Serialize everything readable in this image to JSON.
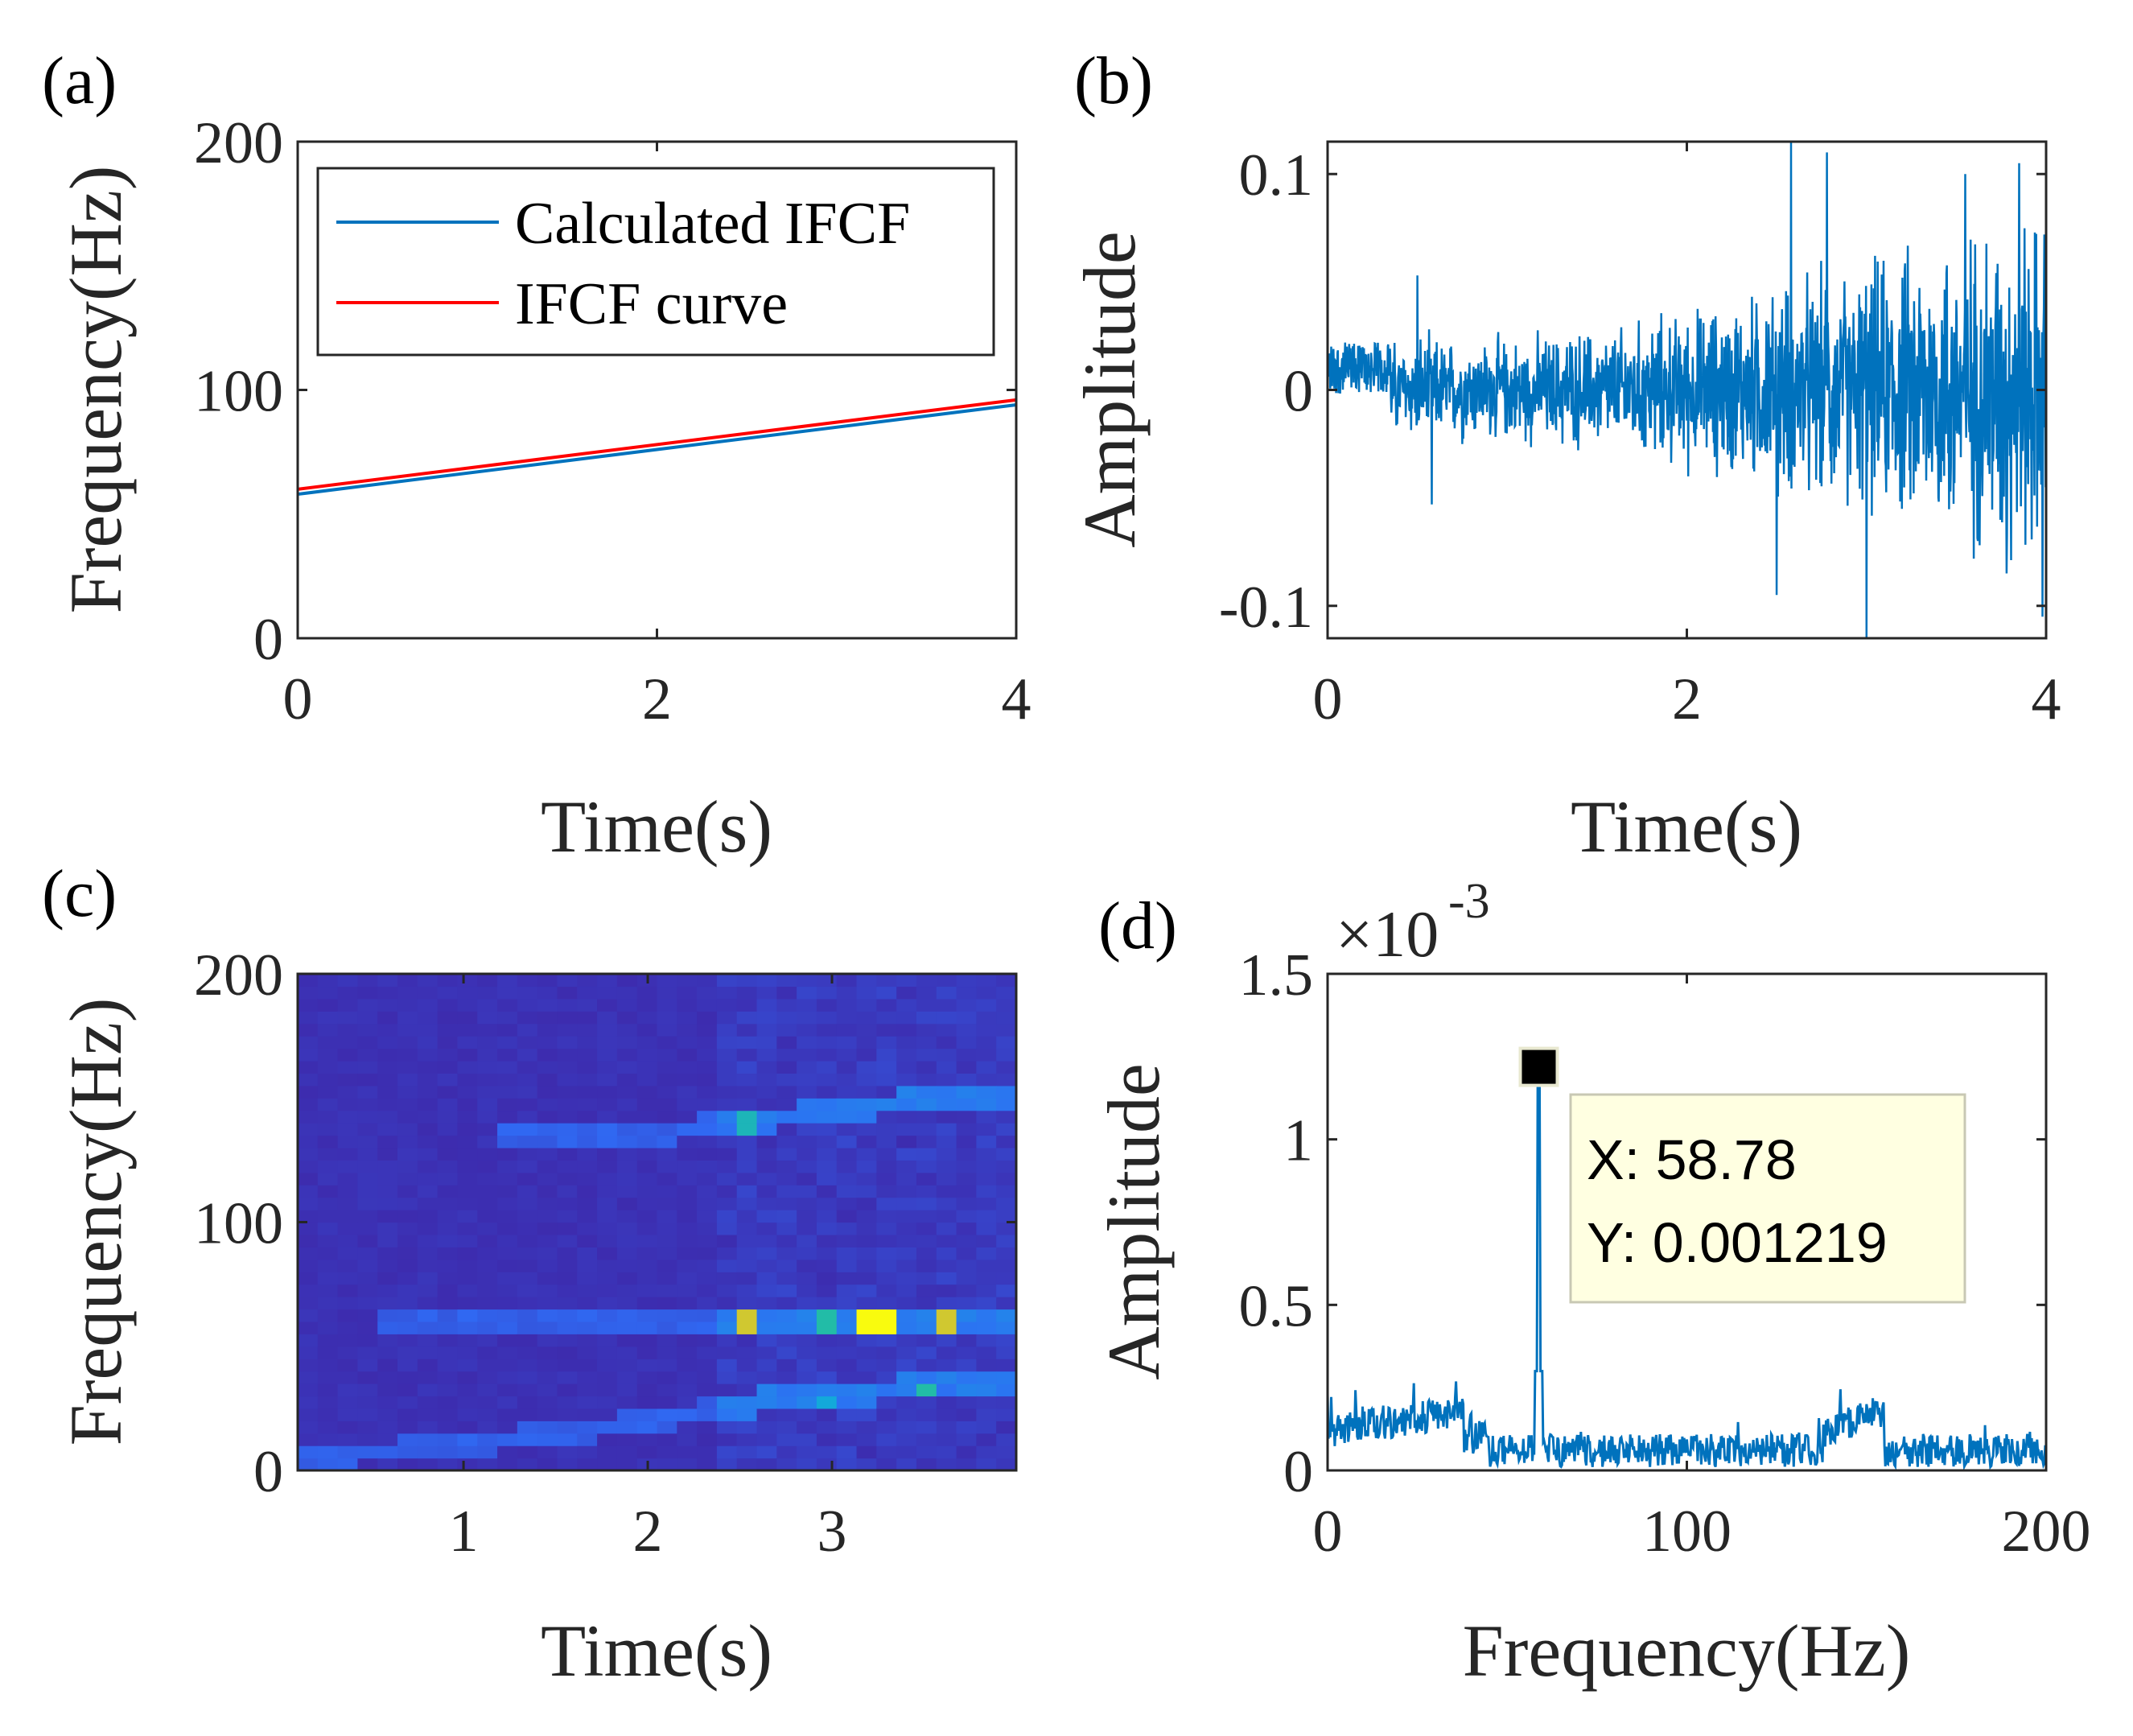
{
  "chart_data": [
    {
      "panel": "(a)",
      "type": "line",
      "xlabel": "Time(s)",
      "ylabel": "Frequency(Hz)",
      "xlim": [
        0,
        4
      ],
      "ylim": [
        0,
        200
      ],
      "xticks": [
        "0",
        "2",
        "4"
      ],
      "yticks": [
        "0",
        "100",
        "200"
      ],
      "legend_position": "top",
      "series": [
        {
          "name": "Calculated IFCF",
          "color": "#0072BD",
          "x": [
            0,
            4
          ],
          "y": [
            58,
            94
          ]
        },
        {
          "name": "IFCF curve",
          "color": "#FF0000",
          "x": [
            0,
            4
          ],
          "y": [
            60,
            96
          ]
        }
      ]
    },
    {
      "panel": "(b)",
      "type": "line",
      "xlabel": "Time(s)",
      "ylabel": "Amplitude",
      "xlim": [
        0,
        4
      ],
      "ylim": [
        -0.115,
        0.115
      ],
      "xticks": [
        "0",
        "2",
        "4"
      ],
      "yticks": [
        "-0.1",
        "0",
        "0.1"
      ],
      "series": [
        {
          "color": "#0072BD",
          "description_points": {
            "envelope_x": [
              0,
              0.5,
              1,
              1.5,
              2,
              2.5,
              3,
              3.5,
              4
            ],
            "envelope_y": [
              0.02,
              0.03,
              0.03,
              0.035,
              0.045,
              0.06,
              0.07,
              0.09,
              0.1
            ],
            "spikes_x": [
              0.5,
              0.58,
              2.5,
              2.58,
              2.78,
              3.0,
              3.55,
              3.78,
              3.85,
              3.98
            ],
            "spikes_y": [
              0.053,
              -0.053,
              -0.095,
              0.115,
              0.11,
              -0.115,
              0.1,
              -0.085,
              0.105,
              -0.105
            ]
          }
        }
      ]
    },
    {
      "panel": "(c)",
      "type": "heatmap",
      "xlabel": "Time(s)",
      "ylabel": "Frequency(Hz)",
      "xlim": [
        0.1,
        4.0
      ],
      "ylim": [
        0,
        200
      ],
      "xticks": [
        "1",
        "2",
        "3"
      ],
      "yticks": [
        "0",
        "100",
        "200"
      ],
      "colormap": "parula",
      "ridges": [
        {
          "t": [
            0.1,
            0.6,
            1.2,
            1.8,
            2.4
          ],
          "f": [
            5,
            8,
            12,
            18,
            24
          ]
        },
        {
          "t": [
            2.4,
            2.8,
            3.2,
            3.6,
            4.0
          ],
          "f": [
            25,
            30,
            32,
            35,
            36
          ]
        },
        {
          "t": [
            0.5,
            1.5,
            2.4,
            2.9,
            3.2,
            3.6,
            4.0
          ],
          "f": [
            59,
            59,
            60,
            60,
            60,
            60,
            60
          ]
        },
        {
          "t": [
            1.2,
            2.0,
            2.4,
            2.7,
            3.0,
            3.5,
            4.0
          ],
          "f": [
            133,
            135,
            140,
            142,
            145,
            150,
            152
          ]
        }
      ],
      "hotspots": [
        {
          "t": 2.5,
          "f": 60,
          "level": 0.85
        },
        {
          "t": 3.25,
          "f": 60,
          "level": 1.0
        },
        {
          "t": 3.65,
          "f": 60,
          "level": 0.85
        },
        {
          "t": 3.0,
          "f": 60,
          "level": 0.6
        },
        {
          "t": 2.5,
          "f": 140,
          "level": 0.55
        },
        {
          "t": 3.5,
          "f": 32,
          "level": 0.6
        },
        {
          "t": 3.0,
          "f": 28,
          "level": 0.45
        }
      ]
    },
    {
      "panel": "(d)",
      "type": "line",
      "xlabel": "Frequency(Hz)",
      "ylabel": "Amplitude",
      "exponent_label": "×10",
      "exponent_power": "-3",
      "xlim": [
        0,
        200
      ],
      "ylim": [
        0,
        1.5
      ],
      "xticks": [
        "0",
        "100",
        "200"
      ],
      "yticks": [
        "0",
        "0.5",
        "1",
        "1.5"
      ],
      "series": [
        {
          "color": "#0072BD",
          "peak": {
            "x": 58.78,
            "y": 1.219
          }
        }
      ],
      "datatip": {
        "x_label": "X: 58.78",
        "y_label": "Y: 0.001219"
      }
    }
  ]
}
